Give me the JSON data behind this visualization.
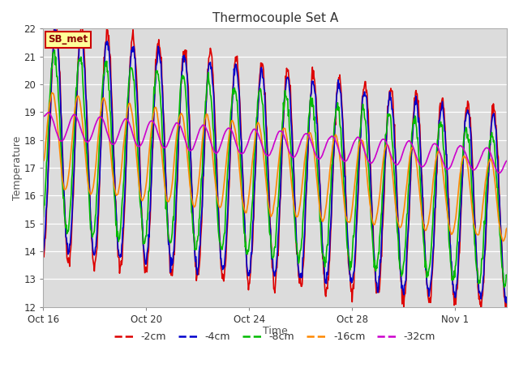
{
  "title": "Thermocouple Set A",
  "xlabel": "Time",
  "ylabel": "Temperature",
  "ylim": [
    12.0,
    22.0
  ],
  "yticks": [
    12.0,
    13.0,
    14.0,
    15.0,
    16.0,
    17.0,
    18.0,
    19.0,
    20.0,
    21.0,
    22.0
  ],
  "bg_color": "#dcdcdc",
  "outer_bg": "#ffffff",
  "annotation_text": "SB_met",
  "annotation_bg": "#ffff99",
  "annotation_edge": "#cc0000",
  "lines": [
    {
      "label": "-2cm",
      "color": "#dd0000",
      "lw": 1.2
    },
    {
      "label": "-4cm",
      "color": "#0000cc",
      "lw": 1.2
    },
    {
      "label": "-8cm",
      "color": "#00bb00",
      "lw": 1.2
    },
    {
      "label": "-16cm",
      "color": "#ff8800",
      "lw": 1.2
    },
    {
      "label": "-32cm",
      "color": "#cc00cc",
      "lw": 1.2
    }
  ],
  "xtick_labels": [
    "Oct 16",
    "Oct 20",
    "Oct 24",
    "Oct 28",
    "Nov 1"
  ],
  "xtick_positions": [
    0,
    4,
    8,
    12,
    16
  ],
  "total_days": 18
}
